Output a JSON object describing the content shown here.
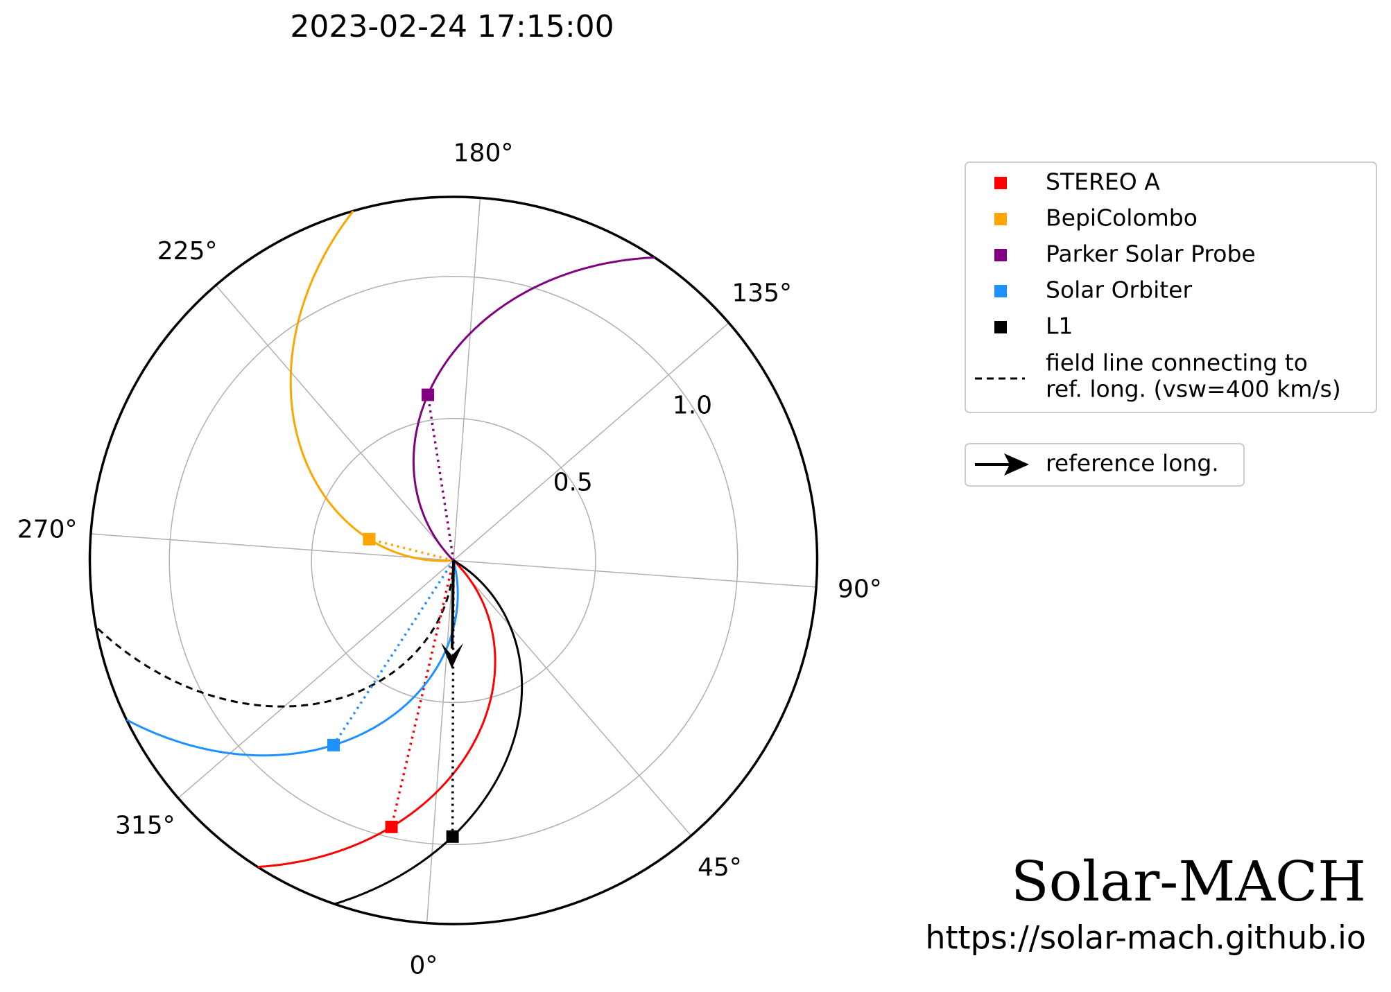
{
  "chart_data": {
    "type": "polar",
    "title": "2023-02-24 17:15:00",
    "rlim": [
      0,
      1.28
    ],
    "rticks": [
      0.5,
      {
        "value": 1,
        "label": "1.0"
      }
    ],
    "thetaticks": [
      {
        "value": 0,
        "label": "0°"
      },
      {
        "value": 45,
        "label": "45°"
      },
      {
        "value": 90,
        "label": "90°"
      },
      {
        "value": 135,
        "label": "135°"
      },
      {
        "value": 180,
        "label": "180°"
      },
      {
        "value": 225,
        "label": "225°"
      },
      {
        "value": 270,
        "label": "270°"
      },
      {
        "value": 315,
        "label": "315°"
      }
    ],
    "grid": true,
    "series": [
      {
        "name": "STEREO A",
        "color": "#ff0000",
        "r": [
          0.963
        ],
        "theta": [
          351.1
        ]
      },
      {
        "name": "BepiColombo",
        "color": "#ffa500",
        "r": [
          0.306
        ],
        "theta": [
          260
        ]
      },
      {
        "name": "Parker Solar Probe",
        "color": "#800080",
        "r": [
          0.59
        ],
        "theta": [
          193
        ]
      },
      {
        "name": "Solar Orbiter",
        "color": "#1e90ff",
        "r": [
          0.775
        ],
        "theta": [
          331.2
        ]
      },
      {
        "name": "L1",
        "color": "#000000",
        "r": [
          0.972
        ],
        "theta": [
          4
        ]
      }
    ],
    "reference": {
      "name": "reference long.",
      "theta": 3.3,
      "vsw": 400,
      "line_label": [
        "field line connecting to",
        "ref. long. (vsw=400 km/s)"
      ]
    },
    "watermark": "Solar-MACH",
    "url": "https://solar-mach.github.io"
  }
}
